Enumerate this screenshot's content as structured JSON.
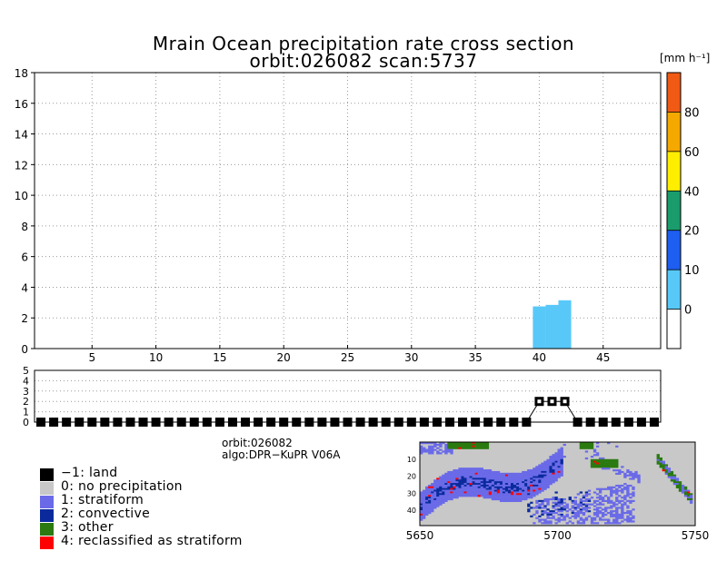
{
  "title": {
    "line1": "Mrain Ocean precipitation rate cross section",
    "line2": "orbit:026082     scan:5737"
  },
  "colorbar": {
    "unit_label": "[mm h⁻¹]",
    "colors": [
      "#ffffff",
      "#58c8f8",
      "#1e5ef0",
      "#1a9c6c",
      "#ffee00",
      "#f5a800",
      "#f05a14"
    ],
    "tick_labels": [
      "0",
      "10",
      "20",
      "40",
      "60",
      "80"
    ]
  },
  "meta": {
    "orbit": "orbit:026082",
    "algo": "algo:DPR−KuPR V06A"
  },
  "legend": [
    {
      "label": "−1: land",
      "color": "#000000"
    },
    {
      "label": "0: no precipitation",
      "color": "#c8c8c8"
    },
    {
      "label": "1: stratiform",
      "color": "#6a6ae8"
    },
    {
      "label": "2: convective",
      "color": "#0a2a9c"
    },
    {
      "label": "3: other",
      "color": "#2a7a10"
    },
    {
      "label": "4: reclassified as stratiform",
      "color": "#ff0000"
    }
  ],
  "chart_data": [
    {
      "type": "bar",
      "name": "precipitation-cross-section",
      "title": "Mrain Ocean precipitation rate cross section",
      "xlabel": "",
      "ylabel": "",
      "xlim": [
        0.5,
        49.5
      ],
      "ylim": [
        0,
        18
      ],
      "xticks": [
        5,
        10,
        15,
        20,
        25,
        30,
        35,
        40,
        45
      ],
      "yticks": [
        0,
        2,
        4,
        6,
        8,
        10,
        12,
        14,
        16,
        18
      ],
      "grid": true,
      "columns": [
        {
          "x": 40,
          "height": 2.75,
          "rate_class": "0-10"
        },
        {
          "x": 41,
          "height": 2.85,
          "rate_class": "0-10"
        },
        {
          "x": 42,
          "height": 3.15,
          "rate_class": "0-10"
        }
      ]
    },
    {
      "type": "scatter",
      "name": "precip-type-strip",
      "xlim": [
        0.5,
        49.5
      ],
      "ylim": [
        0,
        5
      ],
      "yticks": [
        0,
        1,
        2,
        3,
        4,
        5
      ],
      "grid": true,
      "x": [
        1,
        2,
        3,
        4,
        5,
        6,
        7,
        8,
        9,
        10,
        11,
        12,
        13,
        14,
        15,
        16,
        17,
        18,
        19,
        20,
        21,
        22,
        23,
        24,
        25,
        26,
        27,
        28,
        29,
        30,
        31,
        32,
        33,
        34,
        35,
        36,
        37,
        38,
        39,
        40,
        41,
        42,
        43,
        44,
        45,
        46,
        47,
        48,
        49
      ],
      "y": [
        0,
        0,
        0,
        0,
        0,
        0,
        0,
        0,
        0,
        0,
        0,
        0,
        0,
        0,
        0,
        0,
        0,
        0,
        0,
        0,
        0,
        0,
        0,
        0,
        0,
        0,
        0,
        0,
        0,
        0,
        0,
        0,
        0,
        0,
        0,
        0,
        0,
        0,
        0,
        2,
        2,
        2,
        0,
        0,
        0,
        0,
        0,
        0,
        0
      ]
    },
    {
      "type": "heatmap",
      "name": "precip-type-swath-map",
      "xlim": [
        5650,
        5750
      ],
      "ylim": [
        0,
        49
      ],
      "xticks": [
        5650,
        5700,
        5750
      ],
      "yticks": [
        10,
        20,
        30,
        40
      ]
    }
  ]
}
